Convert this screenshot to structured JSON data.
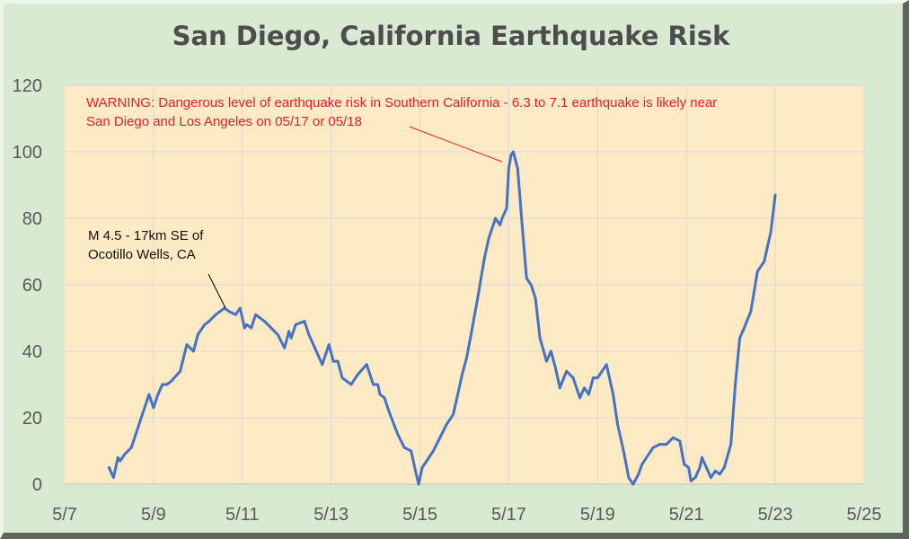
{
  "chart_data": {
    "type": "line",
    "title": "San Diego, California Earthquake Risk",
    "xlabel": "",
    "ylabel": "",
    "xlim": [
      7,
      25
    ],
    "ylim": [
      0,
      120
    ],
    "x_ticks": [
      {
        "value": 7,
        "label": "5/7"
      },
      {
        "value": 9,
        "label": "5/9"
      },
      {
        "value": 11,
        "label": "5/11"
      },
      {
        "value": 13,
        "label": "5/13"
      },
      {
        "value": 15,
        "label": "5/15"
      },
      {
        "value": 17,
        "label": "5/17"
      },
      {
        "value": 19,
        "label": "5/19"
      },
      {
        "value": 21,
        "label": "5/21"
      },
      {
        "value": 23,
        "label": "5/23"
      },
      {
        "value": 25,
        "label": "5/25"
      }
    ],
    "y_ticks": [
      {
        "value": 0,
        "label": "0"
      },
      {
        "value": 20,
        "label": "20"
      },
      {
        "value": 40,
        "label": "40"
      },
      {
        "value": 60,
        "label": "60"
      },
      {
        "value": 80,
        "label": "80"
      },
      {
        "value": 100,
        "label": "100"
      },
      {
        "value": 120,
        "label": "120"
      }
    ],
    "grid": true,
    "series": [
      {
        "name": "Earthquake Risk",
        "color": "#4472c4",
        "x": [
          8.0,
          8.1,
          8.2,
          8.25,
          8.35,
          8.5,
          8.6,
          8.75,
          8.9,
          9.0,
          9.1,
          9.2,
          9.3,
          9.4,
          9.6,
          9.75,
          9.9,
          10.0,
          10.1,
          10.15,
          10.25,
          10.4,
          10.6,
          10.7,
          10.85,
          10.95,
          11.05,
          11.1,
          11.2,
          11.3,
          11.5,
          11.65,
          11.8,
          11.95,
          12.05,
          12.1,
          12.2,
          12.4,
          12.5,
          12.6,
          12.8,
          12.95,
          13.05,
          13.15,
          13.25,
          13.35,
          13.45,
          13.6,
          13.8,
          13.95,
          14.05,
          14.1,
          14.2,
          14.3,
          14.5,
          14.65,
          14.8,
          14.9,
          14.97,
          15.05,
          15.15,
          15.3,
          15.45,
          15.6,
          15.75,
          15.85,
          15.95,
          16.05,
          16.15,
          16.3,
          16.45,
          16.55,
          16.7,
          16.8,
          16.85,
          16.95,
          17.0,
          17.05,
          17.1,
          17.2,
          17.3,
          17.4,
          17.5,
          17.6,
          17.7,
          17.85,
          17.95,
          18.05,
          18.15,
          18.3,
          18.45,
          18.6,
          18.7,
          18.8,
          18.9,
          19.0,
          19.1,
          19.2,
          19.35,
          19.45,
          19.6,
          19.7,
          19.8,
          19.92,
          20.0,
          20.1,
          20.25,
          20.4,
          20.55,
          20.7,
          20.85,
          20.95,
          21.05,
          21.1,
          21.2,
          21.3,
          21.35,
          21.45,
          21.55,
          21.65,
          21.75,
          21.85,
          22.0,
          22.1,
          22.2,
          22.3,
          22.45,
          22.6,
          22.75,
          22.9,
          23.0
        ],
        "y": [
          5,
          2,
          8,
          7,
          9,
          11,
          15,
          21,
          27,
          23,
          27,
          30,
          30,
          31,
          34,
          42,
          40,
          45,
          47,
          48,
          49,
          51,
          53,
          52,
          51,
          53,
          47,
          48,
          47,
          51,
          49,
          47,
          45,
          41,
          46,
          44,
          48,
          49,
          45,
          42,
          36,
          42,
          37,
          37,
          32,
          31,
          30,
          33,
          36,
          30,
          30,
          27,
          26,
          22,
          15,
          11,
          10,
          4,
          0,
          5,
          7,
          10,
          14,
          18,
          21,
          27,
          33,
          38,
          45,
          56,
          68,
          74,
          80,
          78,
          80,
          83,
          95,
          99,
          100,
          95,
          78,
          62,
          60,
          56,
          44,
          37,
          40,
          35,
          29,
          34,
          32,
          26,
          29,
          27,
          32,
          32,
          34,
          36,
          27,
          18,
          9,
          2,
          0,
          3,
          6,
          8,
          11,
          12,
          12,
          14,
          13,
          6,
          5,
          1,
          2,
          5,
          8,
          5,
          2,
          4,
          3,
          5,
          12,
          30,
          44,
          47,
          52,
          64,
          67,
          76,
          87
        ]
      }
    ],
    "annotations": [
      {
        "lines": [
          "M 4.5 - 17km SE of",
          "Ocotillo Wells, CA"
        ],
        "color": "#000000",
        "target": {
          "x": 10.62,
          "y": 53
        }
      },
      {
        "lines": [
          "WARNING: Dangerous level of earthquake risk in Southern California - 6.3 to 7.1 earthquake is likely near",
          "San Diego and Los Angeles on 05/17 or 05/18"
        ],
        "color": "#e0202a",
        "target": {
          "x": 16.85,
          "y": 97
        }
      }
    ],
    "background": {
      "plot": "#fde9c4",
      "frame": "#d8ead2"
    }
  }
}
